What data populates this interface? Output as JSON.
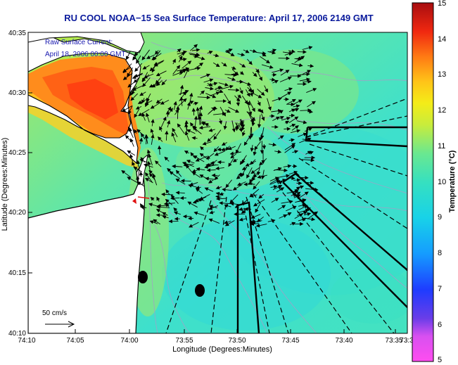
{
  "title": "RU COOL  NOAA−15  Sea Surface Temperature:  April 17, 2006 2149 GMT",
  "current_label": {
    "line1": "Raw Surface Current:",
    "line2": "April 18, 2006 00:00 GMT"
  },
  "scale": {
    "label": "50 cm/s"
  },
  "x_axis": {
    "label": "Longitude (Degrees:Minutes)",
    "ticks": [
      "74:10",
      "74:05",
      "74:00",
      "73:55",
      "73:50",
      "73:45",
      "73:40",
      "73:35",
      "73:3"
    ]
  },
  "y_axis": {
    "label": "Latitude (Degrees:Minutes)",
    "ticks": [
      "40:35",
      "40:30",
      "40:25",
      "40:20",
      "40:15",
      "40:10"
    ]
  },
  "colorbar": {
    "label": "Temperature (°C)",
    "ticks": [
      "15",
      "14",
      "13",
      "12",
      "11",
      "10",
      "9",
      "8",
      "7",
      "6",
      "5"
    ]
  },
  "colors": {
    "title": "#0a1a9c",
    "land": "#ffffff",
    "water_base": "#46e8c8",
    "warm": "#ff8a1a",
    "hot": "#ff3a10"
  }
}
